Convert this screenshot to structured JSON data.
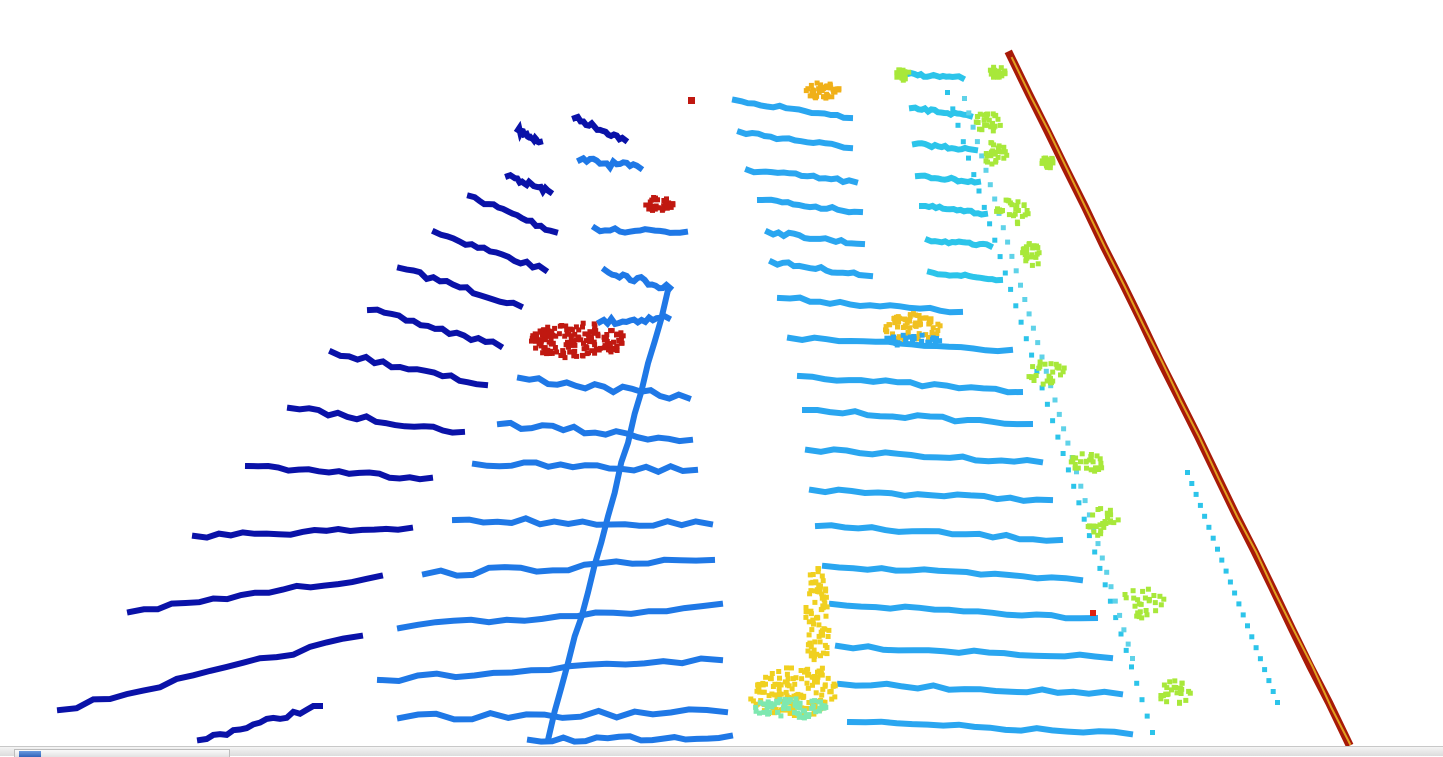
{
  "viewer": {
    "background": "#ffffff",
    "colormap": "jet",
    "colors": {
      "far_left_rings": "#0a12a8",
      "road_rings": "#1f78e6",
      "right_rings": "#2aa6f0",
      "curb": "#2cc4ea",
      "vegetation": "#a8e83a",
      "vehicles": "#f0d020",
      "obstacles": "#c01810",
      "wall": "#a81a08"
    }
  },
  "taskbar": {
    "window_icon": "app-window-icon"
  }
}
